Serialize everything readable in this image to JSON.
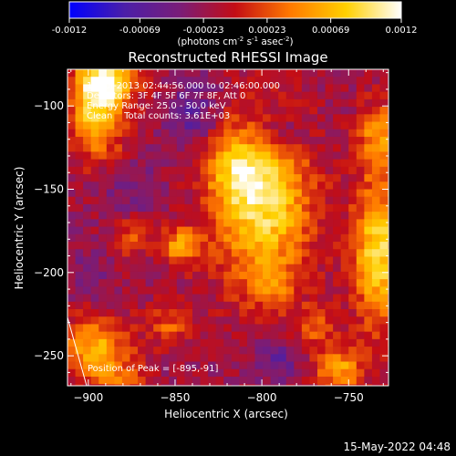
{
  "colorbar": {
    "ticks": [
      "-0.0012",
      "-0.00069",
      "-0.00023",
      "0.00023",
      "0.00069",
      "0.0012"
    ],
    "tick_values": [
      -0.0012,
      -0.00069,
      -0.00023,
      0.00023,
      0.00069,
      0.0012
    ],
    "range": [
      -0.0012,
      0.0012
    ],
    "colors": [
      "#0000ff",
      "#4b1fa8",
      "#7a1d78",
      "#c40d15",
      "#ff7a00",
      "#ffd000",
      "#ffffff"
    ]
  },
  "chart_data": {
    "type": "heatmap",
    "title": "Reconstructed RHESSI Image",
    "unit_label": "(photons cm",
    "unit_exp1": "-2",
    "unit_mid": " s",
    "unit_exp2": "-1",
    "unit_end": " asec",
    "unit_exp3": "-2",
    "unit_close": ")",
    "xlabel": "Heliocentric X (arcsec)",
    "ylabel": "Heliocentric Y (arcsec)",
    "xlim": [
      -912,
      -727
    ],
    "ylim": [
      -268,
      -78
    ],
    "xticks": [
      -900,
      -850,
      -800,
      -750
    ],
    "xtick_labels": [
      "−900",
      "−850",
      "−800",
      "−750"
    ],
    "yticks": [
      -250,
      -200,
      -150,
      -100
    ],
    "ytick_labels": [
      "−250",
      "−200",
      "−150",
      "−100"
    ],
    "info_lines": [
      "15-Jul-2013 02:44:56.000 to 02:46:00.000",
      "Detectors: 3F 4F 5F 6F 7F 8F, Att 0",
      "Energy Range: 25.0 - 50.0 keV",
      "Clean    Total counts: 3.61E+03"
    ],
    "peak_label": "Position of Peak = [-895,-91]",
    "peak": [
      -895,
      -91
    ],
    "intensity_scale": 0.0012,
    "sources": [
      {
        "x": -800,
        "y": -158,
        "peak": 0.00115,
        "sx": 20,
        "sy": 34
      },
      {
        "x": -815,
        "y": -138,
        "peak": 0.00055,
        "sx": 12,
        "sy": 14
      },
      {
        "x": -895,
        "y": -99,
        "peak": 0.0011,
        "sx": 11,
        "sy": 22
      },
      {
        "x": -887,
        "y": -86,
        "peak": 0.0008,
        "sx": 11,
        "sy": 8
      },
      {
        "x": -733,
        "y": -188,
        "peak": 0.0011,
        "sx": 10,
        "sy": 30
      },
      {
        "x": -733,
        "y": -118,
        "peak": 0.0007,
        "sx": 8,
        "sy": 14
      },
      {
        "x": -875,
        "y": -178,
        "peak": 0.00045,
        "sx": 8,
        "sy": 8
      },
      {
        "x": -847,
        "y": -184,
        "peak": 0.00075,
        "sx": 8,
        "sy": 8
      },
      {
        "x": -755,
        "y": -258,
        "peak": 0.00075,
        "sx": 10,
        "sy": 9
      },
      {
        "x": -896,
        "y": -246,
        "peak": 0.00085,
        "sx": 14,
        "sy": 14
      },
      {
        "x": -853,
        "y": -232,
        "peak": 0.00045,
        "sx": 9,
        "sy": 9
      },
      {
        "x": -795,
        "y": -208,
        "peak": 0.00045,
        "sx": 8,
        "sy": 8
      },
      {
        "x": -770,
        "y": -232,
        "peak": 0.00045,
        "sx": 9,
        "sy": 9
      },
      {
        "x": -880,
        "y": -265,
        "peak": 0.0004,
        "sx": 9,
        "sy": 7
      },
      {
        "x": -840,
        "y": -105,
        "peak": -0.00045,
        "sx": 10,
        "sy": 14
      },
      {
        "x": -790,
        "y": -118,
        "peak": -0.0004,
        "sx": 12,
        "sy": 10
      },
      {
        "x": -875,
        "y": -150,
        "peak": -0.00025,
        "sx": 14,
        "sy": 12
      },
      {
        "x": -790,
        "y": -252,
        "peak": -0.0004,
        "sx": 10,
        "sy": 8
      },
      {
        "x": -900,
        "y": -200,
        "peak": -0.0002,
        "sx": 10,
        "sy": 12
      }
    ]
  },
  "footer": {
    "timestamp": "15-May-2022 04:48"
  }
}
